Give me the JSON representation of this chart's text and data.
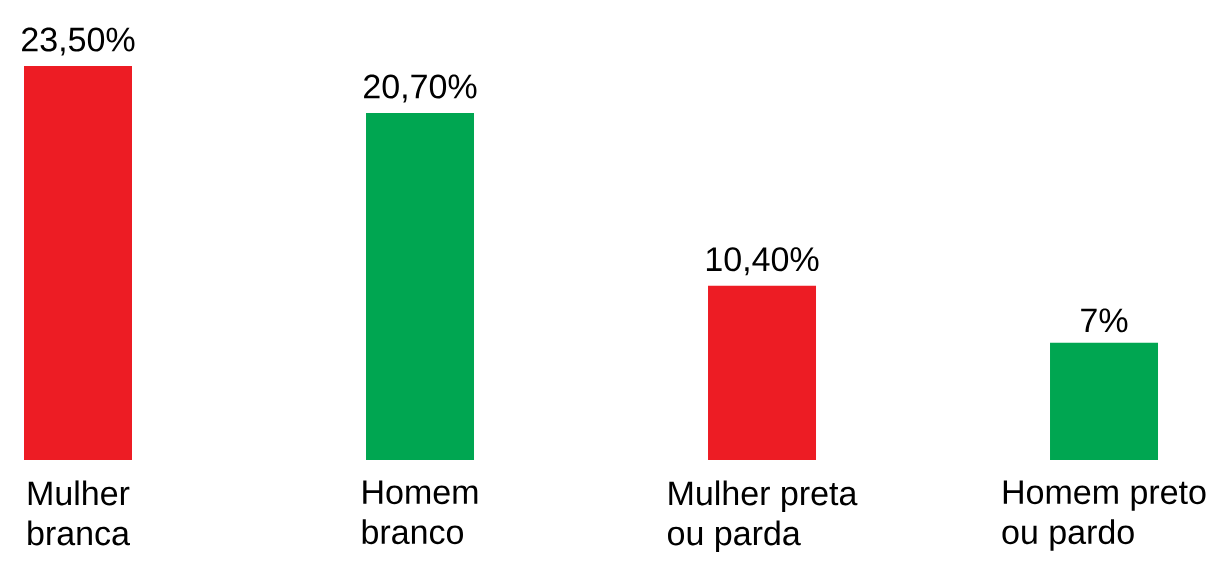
{
  "chart_data": {
    "type": "bar",
    "categories": [
      "Mulher branca",
      "Homem branco",
      "Mulher preta ou parda",
      "Homem preto ou pardo"
    ],
    "values": [
      23.5,
      20.7,
      10.4,
      7
    ],
    "colors": [
      "#ed1c24",
      "#00a651",
      "#ed1c24",
      "#00a651"
    ],
    "value_labels": [
      "23,50%",
      "20,70%",
      "10,40%",
      "7%"
    ]
  }
}
